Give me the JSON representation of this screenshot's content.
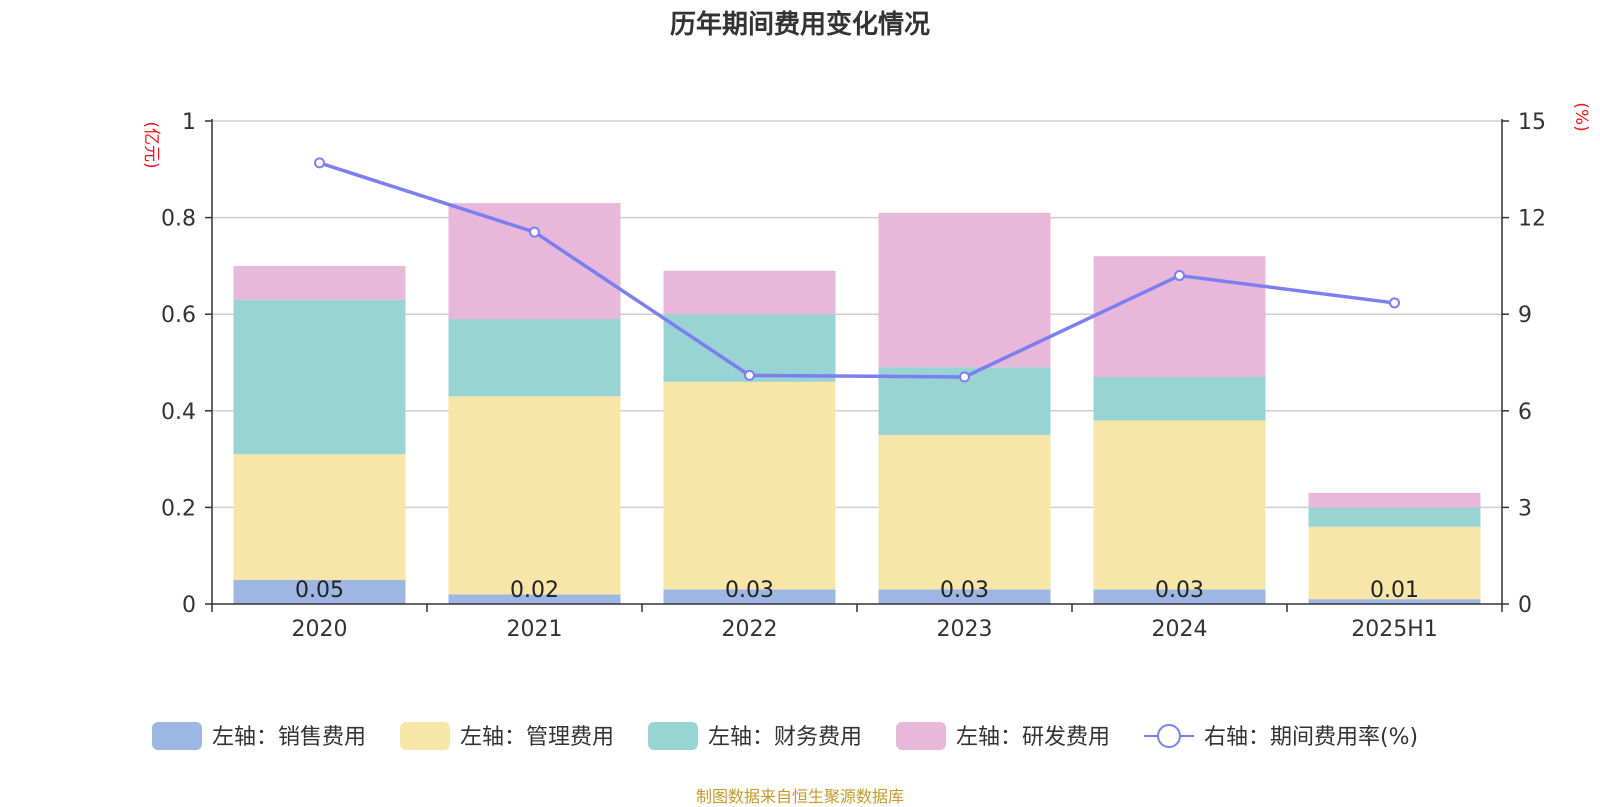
{
  "chart_data": {
    "type": "bar",
    "title": "历年期间费用变化情况",
    "source": "制图数据来自恒生聚源数据库",
    "categories": [
      "2020",
      "2021",
      "2022",
      "2023",
      "2024",
      "2025H1"
    ],
    "left_axis": {
      "unit_label": "(亿元)",
      "ylim": [
        0,
        1
      ],
      "ticks": [
        "0",
        "0.2",
        "0.4",
        "0.6",
        "0.8",
        "1"
      ]
    },
    "right_axis": {
      "unit_label": "(%)",
      "ylim": [
        0,
        15
      ],
      "ticks": [
        "0",
        "3",
        "6",
        "9",
        "12",
        "15"
      ]
    },
    "stacked": true,
    "grid": true,
    "legend_position": "bottom",
    "series": [
      {
        "name": "左轴：销售费用",
        "axis": "left",
        "type": "bar",
        "color": "#9db7e2",
        "values": [
          0.05,
          0.02,
          0.03,
          0.03,
          0.03,
          0.01
        ],
        "labels": [
          "0.05",
          "0.02",
          "0.03",
          "0.03",
          "0.03",
          "0.01"
        ]
      },
      {
        "name": "左轴：管理费用",
        "axis": "left",
        "type": "bar",
        "color": "#f7e6a7",
        "values": [
          0.26,
          0.41,
          0.43,
          0.32,
          0.35,
          0.15
        ]
      },
      {
        "name": "左轴：财务费用",
        "axis": "left",
        "type": "bar",
        "color": "#98d4d4",
        "values": [
          0.32,
          0.16,
          0.14,
          0.14,
          0.09,
          0.04
        ]
      },
      {
        "name": "左轴：研发费用",
        "axis": "left",
        "type": "bar",
        "color": "#e7b8d9",
        "values": [
          0.07,
          0.24,
          0.09,
          0.32,
          0.25,
          0.03
        ]
      },
      {
        "name": "右轴：期间费用率(%)",
        "axis": "right",
        "type": "line",
        "color": "#7b7ff0",
        "values": [
          13.7,
          11.55,
          7.1,
          7.05,
          10.2,
          9.35
        ]
      }
    ]
  }
}
